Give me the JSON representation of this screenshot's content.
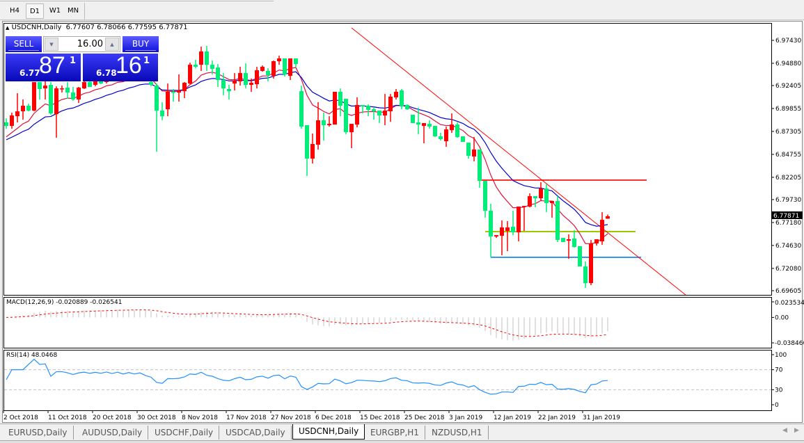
{
  "toolbar": {
    "timeframes": [
      {
        "label": "H4",
        "active": false
      },
      {
        "label": "D1",
        "active": true
      },
      {
        "label": "W1",
        "active": false
      },
      {
        "label": "MN",
        "active": false
      }
    ]
  },
  "chart": {
    "symbol_header": "USDCNH,Daily",
    "ohlc_header": "6.77607 6.78066 6.77595 6.77871",
    "current_price": "6.77871",
    "price_ticks": [
      "6.97430",
      "6.94880",
      "6.92405",
      "6.89855",
      "6.87305",
      "6.84755",
      "6.82205",
      "6.79730",
      "6.77180",
      "6.74630",
      "6.72080",
      "6.69605"
    ],
    "date_labels": [
      "2 Oct 2018",
      "11 Oct 2018",
      "20 Oct 2018",
      "30 Oct 2018",
      "8 Nov 2018",
      "17 Nov 2018",
      "27 Nov 2018",
      "6 Dec 2018",
      "15 Dec 2018",
      "25 Dec 2018",
      "3 Jan 2019",
      "12 Jan 2019",
      "22 Jan 2019",
      "31 Jan 2019"
    ],
    "colors": {
      "bull": "#ff0000",
      "bear": "#00ee77",
      "ma_fast": "#e0103a",
      "ma_slow": "#0000cc",
      "resistance": "#ff3030",
      "middle": "#99cc00",
      "support": "#3399ee",
      "trendline": "#ff0000"
    },
    "horizontal_levels": [
      {
        "name": "resistance",
        "price": 6.8189,
        "from_bar": 85,
        "to_bar": 115
      },
      {
        "name": "middle",
        "price": 6.7617,
        "from_bar": 86,
        "to_bar": 113
      },
      {
        "name": "support",
        "price": 6.7331,
        "from_bar": 87,
        "to_bar": 114
      }
    ],
    "trendline": {
      "from": {
        "bar": 62,
        "price": 6.9882
      },
      "to": {
        "bar": 122,
        "price": 6.6913
      }
    },
    "candles": [
      [
        6.8831,
        6.8877,
        6.8761,
        6.8792
      ],
      [
        6.8792,
        6.8939,
        6.8761,
        6.8908
      ],
      [
        6.89,
        6.9155,
        6.8831,
        6.8954
      ],
      [
        6.8954,
        6.9086,
        6.8861,
        6.9016
      ],
      [
        6.9016,
        6.9039,
        6.8954,
        6.8962
      ],
      [
        6.8962,
        6.9279,
        6.8954,
        6.9279
      ],
      [
        6.9279,
        6.9279,
        6.9086,
        6.9202
      ],
      [
        6.9209,
        6.9287,
        6.9086,
        6.924
      ],
      [
        6.9248,
        6.9279,
        6.8916,
        6.8931
      ],
      [
        6.8923,
        6.9232,
        6.866,
        6.9209
      ],
      [
        6.9202,
        6.924,
        6.9163,
        6.9209
      ],
      [
        6.9217,
        6.9279,
        6.9093,
        6.9163
      ],
      [
        6.9163,
        6.9225,
        6.907,
        6.9086
      ],
      [
        6.9086,
        6.9225,
        6.9047,
        6.9217
      ],
      [
        6.9209,
        6.9294,
        6.9202,
        6.9279
      ],
      [
        6.9279,
        6.9294,
        6.9225,
        6.9225
      ],
      [
        6.9248,
        6.931,
        6.9232,
        6.9302
      ],
      [
        6.9325,
        6.9341,
        6.9256,
        6.9263
      ],
      [
        6.9279,
        6.9364,
        6.9263,
        6.9356
      ],
      [
        6.9356,
        6.9372,
        6.9287,
        6.9294
      ],
      [
        6.9325,
        6.9403,
        6.931,
        6.9387
      ],
      [
        6.9387,
        6.9395,
        6.9294,
        6.931
      ],
      [
        6.9341,
        6.9426,
        6.9325,
        6.9418
      ],
      [
        6.9418,
        6.9433,
        6.9341,
        6.9356
      ],
      [
        6.9372,
        6.9449,
        6.9356,
        6.9433
      ],
      [
        6.9433,
        6.9441,
        6.931,
        6.9325
      ],
      [
        6.9279,
        6.9302,
        6.9232,
        6.9248
      ],
      [
        6.924,
        6.9263,
        6.8506,
        6.8962
      ],
      [
        6.8962,
        6.9055,
        6.8854,
        6.89
      ],
      [
        6.8977,
        6.9263,
        6.89,
        6.9171
      ],
      [
        6.9171,
        6.9202,
        6.9062,
        6.9163
      ],
      [
        6.9163,
        6.9364,
        6.9062,
        6.9186
      ],
      [
        6.9178,
        6.9279,
        6.9101,
        6.9271
      ],
      [
        6.9263,
        6.9495,
        6.9256,
        6.9472
      ],
      [
        6.9472,
        6.9526,
        6.9433,
        6.9449
      ],
      [
        6.9472,
        6.9673,
        6.9403,
        6.9619
      ],
      [
        6.9619,
        6.9681,
        6.9403,
        6.9472
      ],
      [
        6.9472,
        6.9518,
        6.9364,
        6.9426
      ],
      [
        6.9441,
        6.948,
        6.9225,
        6.9302
      ],
      [
        6.9302,
        6.9379,
        6.9132,
        6.9209
      ],
      [
        6.9202,
        6.9248,
        6.9086,
        6.9178
      ],
      [
        6.9263,
        6.9379,
        6.9186,
        6.9294
      ],
      [
        6.9287,
        6.9449,
        6.924,
        6.9379
      ],
      [
        6.9379,
        6.9488,
        6.9209,
        6.9248
      ],
      [
        6.9248,
        6.9318,
        6.9171,
        6.9271
      ],
      [
        6.9256,
        6.9449,
        6.9209,
        6.941
      ],
      [
        6.9403,
        6.9464,
        6.9395,
        6.9449
      ],
      [
        6.9403,
        6.9433,
        6.9287,
        6.9356
      ],
      [
        6.9348,
        6.9518,
        6.9318,
        6.9511
      ],
      [
        6.9511,
        6.9573,
        6.9472,
        6.9542
      ],
      [
        6.9542,
        6.9542,
        6.9341,
        6.9364
      ],
      [
        6.9348,
        6.9542,
        6.9302,
        6.9542
      ],
      [
        6.9542,
        6.9542,
        6.9441,
        6.948
      ],
      [
        6.9178,
        6.924,
        6.8761,
        6.8784
      ],
      [
        6.88,
        6.88,
        6.8235,
        6.8429
      ],
      [
        6.8429,
        6.8707,
        6.8374,
        6.8591
      ],
      [
        6.8583,
        6.9055,
        6.8529,
        6.8854
      ],
      [
        6.8854,
        6.8939,
        6.863,
        6.88
      ],
      [
        6.88,
        6.89,
        6.8784,
        6.8815
      ],
      [
        6.8807,
        6.9171,
        6.8807,
        6.9171
      ],
      [
        6.9171,
        6.9209,
        6.89,
        6.9016
      ],
      [
        6.9093,
        6.9093,
        6.8699,
        6.8722
      ],
      [
        6.8722,
        6.8815,
        6.8545,
        6.8815
      ],
      [
        6.8807,
        6.9109,
        6.8776,
        6.9024
      ],
      [
        6.9024,
        6.9024,
        6.8931,
        6.9008
      ],
      [
        6.9016,
        6.9031,
        6.89,
        6.897
      ],
      [
        6.8977,
        6.8993,
        6.8861,
        6.8954
      ],
      [
        6.8962,
        6.8962,
        6.8823,
        6.8908
      ],
      [
        6.8908,
        6.9147,
        6.88,
        6.8962
      ],
      [
        6.8954,
        6.9147,
        6.8838,
        6.9117
      ],
      [
        6.9109,
        6.9202,
        6.9086,
        6.9171
      ],
      [
        6.9186,
        6.9202,
        6.8977,
        6.9008
      ],
      [
        6.9024,
        6.9031,
        6.897,
        6.8977
      ],
      [
        6.8916,
        6.8916,
        6.8823,
        6.8823
      ],
      [
        6.8831,
        6.8993,
        6.8699,
        6.8807
      ],
      [
        6.8792,
        6.8823,
        6.8599,
        6.8823
      ],
      [
        6.8815,
        6.8854,
        6.8761,
        6.8784
      ],
      [
        6.8792,
        6.8792,
        6.8668,
        6.8676
      ],
      [
        6.8676,
        6.8715,
        6.863,
        6.8645
      ],
      [
        6.8622,
        6.8784,
        6.856,
        6.8753
      ],
      [
        6.8745,
        6.8931,
        6.8715,
        6.8807
      ],
      [
        6.8807,
        6.8831,
        6.866,
        6.8668
      ],
      [
        6.8676,
        6.8676,
        6.8614,
        6.8614
      ],
      [
        6.8606,
        6.8606,
        6.8429,
        6.8459
      ],
      [
        6.8452,
        6.8668,
        6.8398,
        6.8529
      ],
      [
        6.8529,
        6.8529,
        6.8104,
        6.8181
      ],
      [
        6.8181,
        6.8181,
        6.7772,
        6.7849
      ],
      [
        6.7849,
        6.7926,
        6.7331,
        6.7563
      ],
      [
        6.7563,
        6.7578,
        6.7547,
        6.7578
      ],
      [
        6.7571,
        6.7741,
        6.7354,
        6.7663
      ],
      [
        6.7625,
        6.7733,
        6.74,
        6.7663
      ],
      [
        6.7671,
        6.7849,
        6.7578,
        6.7609
      ],
      [
        6.7609,
        6.7895,
        6.7509,
        6.7895
      ],
      [
        6.7895,
        6.7903,
        6.7625,
        6.7903
      ],
      [
        6.7895,
        6.8042,
        6.7887,
        6.8011
      ],
      [
        6.8011,
        6.8011,
        6.7887,
        6.7988
      ],
      [
        6.7988,
        6.8166,
        6.7957,
        6.8096
      ],
      [
        6.8096,
        6.8143,
        6.7833,
        6.7934
      ],
      [
        6.7934,
        6.7957,
        6.7772,
        6.7957
      ],
      [
        6.7957,
        6.8011,
        6.7501,
        6.7524
      ],
      [
        6.7547,
        6.7547,
        6.7501,
        6.7501
      ],
      [
        6.7516,
        6.7586,
        6.7315,
        6.7532
      ],
      [
        6.754,
        6.7632,
        6.7439,
        6.7447
      ],
      [
        6.7455,
        6.7455,
        6.723,
        6.723
      ],
      [
        6.723,
        6.7285,
        6.6991,
        6.7045
      ],
      [
        6.7045,
        6.7524,
        6.7022,
        6.7485
      ],
      [
        6.7485,
        6.7532,
        6.7462,
        6.7532
      ],
      [
        6.7509,
        6.7833,
        6.747,
        6.7748
      ],
      [
        6.77607,
        6.78066,
        6.77595,
        6.77871
      ]
    ]
  },
  "one_click": {
    "sell_label": "SELL",
    "buy_label": "BUY",
    "volume": "16.00",
    "sell_price_prefix": "6.77",
    "sell_price_big": "87",
    "sell_price_sup": "1",
    "buy_price_prefix": "6.78",
    "buy_price_big": "16",
    "buy_price_sup": "1"
  },
  "macd": {
    "label": "MACD(12,26,9) -0.020889 -0.026541",
    "ticks": [
      "0.023534",
      "0.00",
      "-0.038466"
    ],
    "range": [
      -0.038466,
      0.023534
    ]
  },
  "rsi": {
    "label": "RSI(14) 48.0468",
    "ticks": [
      "100",
      "70",
      "30",
      "0"
    ],
    "levels": [
      70,
      30
    ],
    "color": "#1e90ff"
  },
  "bottom_tabs": [
    {
      "label": "EURUSD,Daily",
      "active": false
    },
    {
      "label": "AUDUSD,Daily",
      "active": false
    },
    {
      "label": "USDCHF,Daily",
      "active": false
    },
    {
      "label": "USDCAD,Daily",
      "active": false
    },
    {
      "label": "USDCNH,Daily",
      "active": true
    },
    {
      "label": "EURGBP,H1",
      "active": false
    },
    {
      "label": "NZDUSD,H1",
      "active": false
    }
  ]
}
